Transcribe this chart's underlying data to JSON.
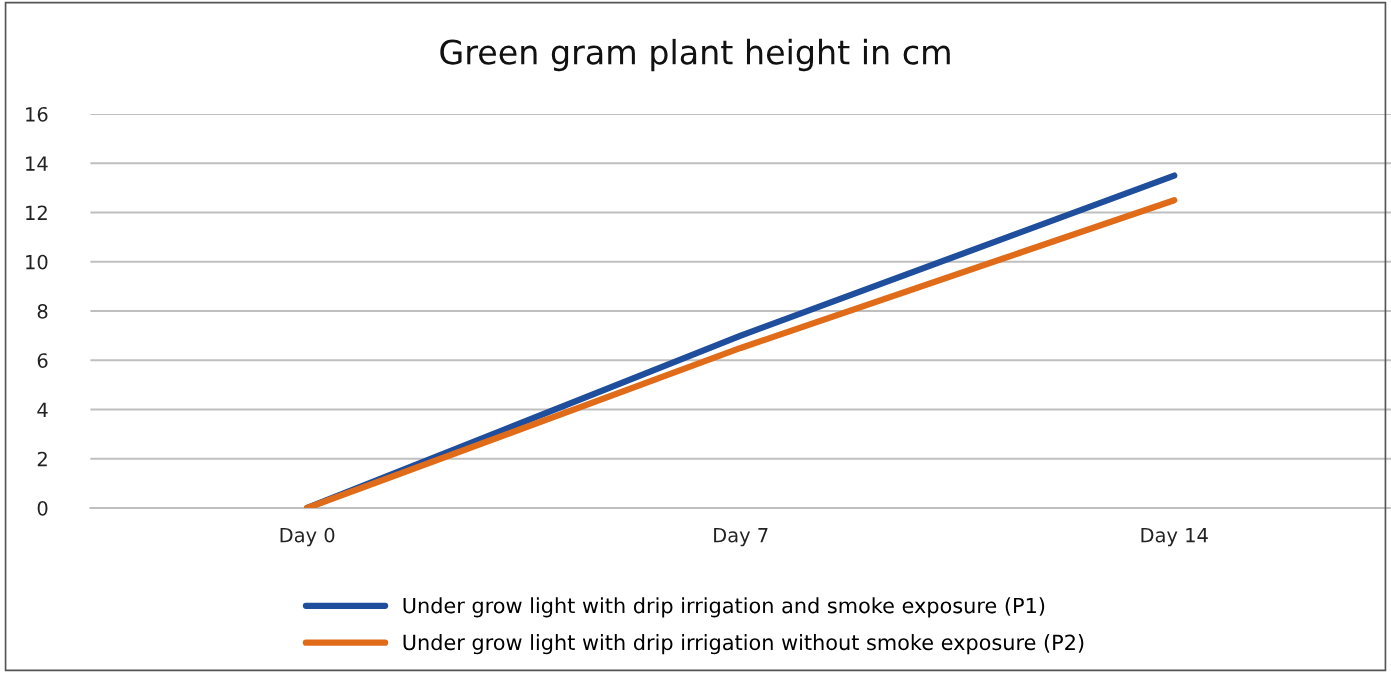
{
  "chart_data": {
    "type": "line",
    "title": "Green gram plant height in cm",
    "categories": [
      "Day 0",
      "Day 7",
      "Day 14"
    ],
    "series": [
      {
        "name": "Under grow light with drip irrigation and smoke exposure (P1)",
        "color": "#1f4e9c",
        "values": [
          0,
          7.0,
          13.5
        ]
      },
      {
        "name": "Under grow light with drip irrigation without smoke exposure (P2)",
        "color": "#e06c1a",
        "values": [
          0,
          6.5,
          12.5
        ]
      }
    ],
    "ylim": [
      0,
      16
    ],
    "yticks": [
      0,
      2,
      4,
      6,
      8,
      10,
      12,
      14,
      16
    ],
    "grid": "y",
    "legend": "bottom",
    "marker": "none",
    "line_style": "solid"
  }
}
